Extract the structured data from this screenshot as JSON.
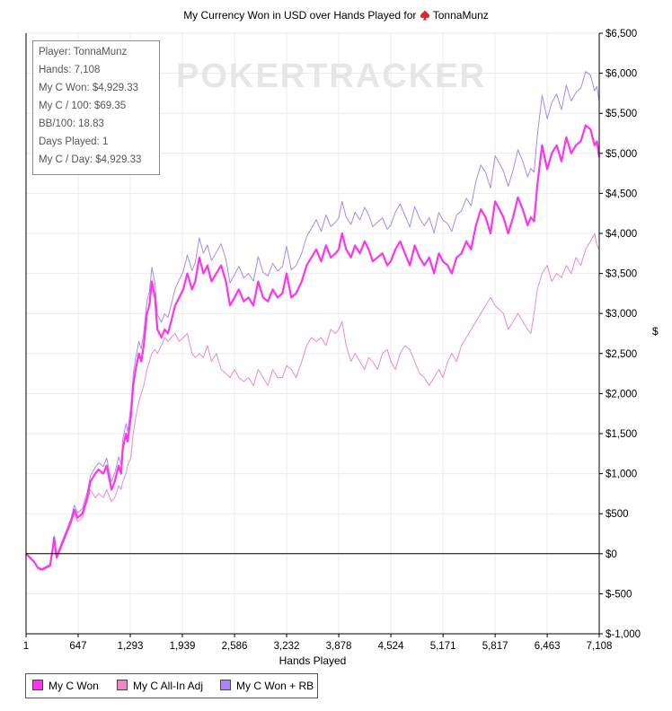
{
  "chart_data": {
    "type": "line",
    "title_prefix": "My Currency Won in USD over Hands Played for",
    "title_player": "TonnaMunz",
    "xlabel": "Hands Played",
    "ylabel": "$",
    "xlim": [
      1,
      7108
    ],
    "ylim": [
      -1000,
      6500
    ],
    "x_ticks": [
      1,
      647,
      1293,
      1939,
      2586,
      3232,
      3878,
      4524,
      5171,
      5817,
      6463,
      7108
    ],
    "x_tick_labels": [
      "1",
      "647",
      "1,293",
      "1,939",
      "2,586",
      "3,232",
      "3,878",
      "4,524",
      "5,171",
      "5,817",
      "6,463",
      "7,108"
    ],
    "y_ticks": [
      -1000,
      -500,
      0,
      500,
      1000,
      1500,
      2000,
      2500,
      3000,
      3500,
      4000,
      4500,
      5000,
      5500,
      6000,
      6500
    ],
    "y_tick_labels": [
      "$-1,000",
      "$-500",
      "$0",
      "$500",
      "$1,000",
      "$1,500",
      "$2,000",
      "$2,500",
      "$3,000",
      "$3,500",
      "$4,000",
      "$4,500",
      "$5,000",
      "$5,500",
      "$6,000",
      "$6,500"
    ],
    "grid": true,
    "legend_position": "bottom-left",
    "series": [
      {
        "name": "My C Won",
        "color": "#ff33ee",
        "x": [
          1,
          100,
          150,
          200,
          300,
          330,
          350,
          380,
          420,
          480,
          520,
          560,
          600,
          640,
          700,
          760,
          800,
          860,
          900,
          960,
          1000,
          1060,
          1100,
          1150,
          1180,
          1200,
          1240,
          1260,
          1300,
          1330,
          1360,
          1400,
          1430,
          1460,
          1500,
          1530,
          1560,
          1600,
          1630,
          1680,
          1720,
          1760,
          1800,
          1850,
          1900,
          1950,
          2000,
          2060,
          2100,
          2150,
          2200,
          2250,
          2300,
          2360,
          2420,
          2480,
          2530,
          2586,
          2640,
          2700,
          2760,
          2820,
          2880,
          2940,
          3000,
          3060,
          3120,
          3180,
          3232,
          3290,
          3350,
          3420,
          3480,
          3540,
          3600,
          3660,
          3720,
          3780,
          3840,
          3878,
          3920,
          3970,
          4030,
          4080,
          4140,
          4200,
          4250,
          4300,
          4360,
          4420,
          4480,
          4524,
          4580,
          4640,
          4700,
          4760,
          4820,
          4880,
          4940,
          5000,
          5060,
          5120,
          5171,
          5230,
          5280,
          5340,
          5400,
          5460,
          5520,
          5580,
          5640,
          5700,
          5760,
          5817,
          5870,
          5920,
          5980,
          6040,
          6100,
          6160,
          6220,
          6260,
          6300,
          6340,
          6400,
          6463,
          6520,
          6580,
          6640,
          6700,
          6760,
          6820,
          6880,
          6940,
          7000,
          7050,
          7080,
          7108
        ],
        "y": [
          0,
          -100,
          -180,
          -200,
          -150,
          50,
          200,
          -50,
          50,
          200,
          300,
          400,
          550,
          450,
          500,
          700,
          900,
          1000,
          1050,
          1000,
          1100,
          800,
          900,
          1100,
          1000,
          1300,
          1500,
          1400,
          1700,
          2100,
          2300,
          2500,
          2400,
          2600,
          3000,
          3100,
          3400,
          3200,
          2800,
          2700,
          2800,
          2750,
          2900,
          3100,
          3200,
          3300,
          3500,
          3300,
          3400,
          3700,
          3500,
          3600,
          3400,
          3500,
          3600,
          3400,
          3100,
          3200,
          3300,
          3150,
          3200,
          3100,
          3400,
          3200,
          3150,
          3300,
          3200,
          3250,
          3500,
          3200,
          3250,
          3400,
          3600,
          3700,
          3800,
          3650,
          3850,
          3700,
          3750,
          3800,
          4000,
          3800,
          3700,
          3850,
          3750,
          3900,
          3800,
          3650,
          3700,
          3750,
          3600,
          3650,
          3800,
          3900,
          3750,
          3600,
          3850,
          3700,
          3600,
          3700,
          3500,
          3750,
          3650,
          3600,
          3500,
          3700,
          3750,
          3900,
          3800,
          4100,
          4300,
          4200,
          4000,
          4400,
          4300,
          4200,
          4000,
          4200,
          4450,
          4300,
          4100,
          4200,
          4150,
          4600,
          5100,
          4800,
          5000,
          5100,
          4900,
          5200,
          5000,
          5100,
          5150,
          5350,
          5300,
          5100,
          5150,
          4950
        ]
      },
      {
        "name": "My C All-In Adj",
        "color": "#ee88cc",
        "x": [
          1,
          100,
          150,
          200,
          300,
          330,
          350,
          380,
          420,
          480,
          520,
          560,
          600,
          640,
          700,
          760,
          800,
          860,
          900,
          960,
          1000,
          1060,
          1100,
          1150,
          1180,
          1200,
          1240,
          1260,
          1300,
          1330,
          1360,
          1400,
          1430,
          1460,
          1500,
          1530,
          1560,
          1600,
          1630,
          1680,
          1720,
          1760,
          1800,
          1850,
          1900,
          1950,
          2000,
          2060,
          2100,
          2150,
          2200,
          2250,
          2300,
          2360,
          2420,
          2480,
          2530,
          2586,
          2640,
          2700,
          2760,
          2820,
          2880,
          2940,
          3000,
          3060,
          3120,
          3180,
          3232,
          3290,
          3350,
          3420,
          3480,
          3540,
          3600,
          3660,
          3720,
          3780,
          3840,
          3878,
          3920,
          3970,
          4030,
          4080,
          4140,
          4200,
          4250,
          4300,
          4360,
          4420,
          4480,
          4524,
          4580,
          4640,
          4700,
          4760,
          4820,
          4880,
          4940,
          5000,
          5060,
          5120,
          5171,
          5230,
          5280,
          5340,
          5400,
          5460,
          5520,
          5580,
          5640,
          5700,
          5760,
          5817,
          5870,
          5920,
          5980,
          6040,
          6100,
          6160,
          6220,
          6260,
          6300,
          6340,
          6400,
          6463,
          6520,
          6580,
          6640,
          6700,
          6760,
          6820,
          6880,
          6940,
          7000,
          7050,
          7080,
          7108
        ],
        "y": [
          0,
          -100,
          -180,
          -200,
          -150,
          50,
          200,
          -50,
          50,
          200,
          300,
          400,
          500,
          400,
          450,
          650,
          800,
          700,
          750,
          700,
          800,
          650,
          700,
          850,
          800,
          900,
          1000,
          1100,
          1200,
          1500,
          1700,
          1900,
          2000,
          2100,
          2300,
          2400,
          2500,
          2550,
          2500,
          2600,
          2700,
          2650,
          2700,
          2750,
          2650,
          2700,
          2750,
          2500,
          2450,
          2500,
          2450,
          2600,
          2400,
          2500,
          2300,
          2250,
          2200,
          2300,
          2200,
          2150,
          2200,
          2100,
          2300,
          2200,
          2100,
          2300,
          2200,
          2200,
          2350,
          2300,
          2200,
          2400,
          2600,
          2700,
          2650,
          2700,
          2600,
          2800,
          2750,
          2800,
          2900,
          2600,
          2400,
          2500,
          2400,
          2300,
          2450,
          2400,
          2300,
          2500,
          2550,
          2400,
          2300,
          2500,
          2600,
          2550,
          2400,
          2250,
          2200,
          2100,
          2200,
          2300,
          2200,
          2400,
          2500,
          2400,
          2600,
          2700,
          2800,
          2900,
          3000,
          3100,
          3200,
          3100,
          3050,
          3000,
          2800,
          2900,
          3000,
          2900,
          2800,
          2750,
          3000,
          3300,
          3500,
          3600,
          3400,
          3500,
          3450,
          3600,
          3500,
          3700,
          3600,
          3800,
          3900,
          4000,
          3850,
          3800
        ]
      },
      {
        "name": "My C Won + RB",
        "color": "#aa88ee",
        "x": [
          1,
          100,
          150,
          200,
          300,
          330,
          350,
          380,
          420,
          480,
          520,
          560,
          600,
          640,
          700,
          760,
          800,
          860,
          900,
          960,
          1000,
          1060,
          1100,
          1150,
          1180,
          1200,
          1240,
          1260,
          1300,
          1330,
          1360,
          1400,
          1430,
          1460,
          1500,
          1530,
          1560,
          1600,
          1630,
          1680,
          1720,
          1760,
          1800,
          1850,
          1900,
          1950,
          2000,
          2060,
          2100,
          2150,
          2200,
          2250,
          2300,
          2360,
          2420,
          2480,
          2530,
          2586,
          2640,
          2700,
          2760,
          2820,
          2880,
          2940,
          3000,
          3060,
          3120,
          3180,
          3232,
          3290,
          3350,
          3420,
          3480,
          3540,
          3600,
          3660,
          3720,
          3780,
          3840,
          3878,
          3920,
          3970,
          4030,
          4080,
          4140,
          4200,
          4250,
          4300,
          4360,
          4420,
          4480,
          4524,
          4580,
          4640,
          4700,
          4760,
          4820,
          4880,
          4940,
          5000,
          5060,
          5120,
          5171,
          5230,
          5280,
          5340,
          5400,
          5460,
          5520,
          5580,
          5640,
          5700,
          5760,
          5817,
          5870,
          5920,
          5980,
          6040,
          6100,
          6160,
          6220,
          6260,
          6300,
          6340,
          6400,
          6463,
          6520,
          6580,
          6640,
          6700,
          6760,
          6820,
          6880,
          6940,
          7000,
          7050,
          7080,
          7108
        ],
        "y": [
          0,
          -95,
          -170,
          -185,
          -130,
          70,
          225,
          -20,
          85,
          240,
          345,
          450,
          605,
          510,
          565,
          770,
          975,
          1080,
          1135,
          1090,
          1195,
          900,
          1005,
          1210,
          1115,
          1420,
          1625,
          1530,
          1835,
          2240,
          2445,
          2650,
          2555,
          2760,
          3165,
          3270,
          3575,
          3380,
          2985,
          2890,
          2995,
          2950,
          3105,
          3310,
          3420,
          3525,
          3730,
          3535,
          3640,
          3945,
          3750,
          3855,
          3660,
          3765,
          3870,
          3675,
          3380,
          3485,
          3590,
          3445,
          3500,
          3405,
          3710,
          3515,
          3470,
          3625,
          3530,
          3585,
          3840,
          3545,
          3600,
          3755,
          3960,
          4065,
          4170,
          4025,
          4230,
          4085,
          4140,
          4195,
          4400,
          4205,
          4110,
          4265,
          4170,
          4325,
          4230,
          4085,
          4140,
          4195,
          4050,
          4105,
          4265,
          4370,
          4225,
          4080,
          4335,
          4190,
          4095,
          4200,
          4005,
          4260,
          4165,
          4120,
          4025,
          4230,
          4285,
          4440,
          4345,
          4650,
          4855,
          4760,
          4565,
          4970,
          4875,
          4780,
          4585,
          4790,
          5045,
          4900,
          4705,
          4810,
          4765,
          5220,
          5725,
          5430,
          5635,
          5740,
          5545,
          5850,
          5655,
          5760,
          5815,
          6020,
          5975,
          5780,
          5835,
          5640
        ]
      }
    ]
  },
  "stats_box": {
    "player": "Player: TonnaMunz",
    "hands": "Hands: 7,108",
    "won": "My C Won: $4,929.33",
    "per100": "My C / 100: $69.35",
    "bb100": "BB/100: 18.83",
    "days": "Days Played: 1",
    "per_day": "My C / Day: $4,929.33"
  },
  "watermark": "POKERTRACKER",
  "colors": {
    "grid": "#ebebeb",
    "axis": "#000000",
    "zero_line": "#000000"
  }
}
